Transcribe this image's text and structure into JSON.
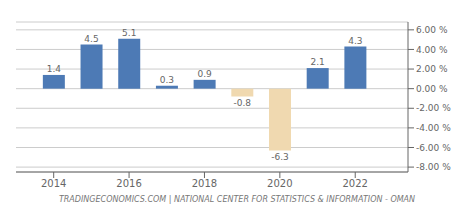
{
  "chart_data": {
    "type": "bar",
    "x": [
      2014,
      2015,
      2016,
      2017,
      2018,
      2019,
      2020,
      2021,
      2022
    ],
    "values": [
      1.4,
      4.5,
      5.1,
      0.3,
      0.9,
      -0.8,
      -6.3,
      2.1,
      4.3
    ],
    "colors": [
      "#4d7ab5",
      "#4d7ab5",
      "#4d7ab5",
      "#4d7ab5",
      "#4d7ab5",
      "#f0d9b0",
      "#f0d9b0",
      "#4d7ab5",
      "#4d7ab5"
    ],
    "xlim": [
      2013.0,
      2023.4
    ],
    "xticks": [
      2014,
      2016,
      2018,
      2020,
      2022
    ],
    "ylim": [
      -8.5,
      6.8
    ],
    "yticks": [
      {
        "value": -8.0,
        "label": "-8.00 %"
      },
      {
        "value": -6.0,
        "label": "-6.00 %"
      },
      {
        "value": -4.0,
        "label": "-4.00 %"
      },
      {
        "value": -2.0,
        "label": "-2.00 %"
      },
      {
        "value": 0.0,
        "label": "0.00 %"
      },
      {
        "value": 2.0,
        "label": "2.00 %"
      },
      {
        "value": 4.0,
        "label": "4.00 %"
      },
      {
        "value": 6.0,
        "label": "6.00 %"
      }
    ],
    "grid": true,
    "data_labels": true,
    "annotations": [
      "TRADINGECONOMICS.COM | NATIONAL CENTER FOR STATISTICS & INFORMATION - OMAN"
    ]
  }
}
